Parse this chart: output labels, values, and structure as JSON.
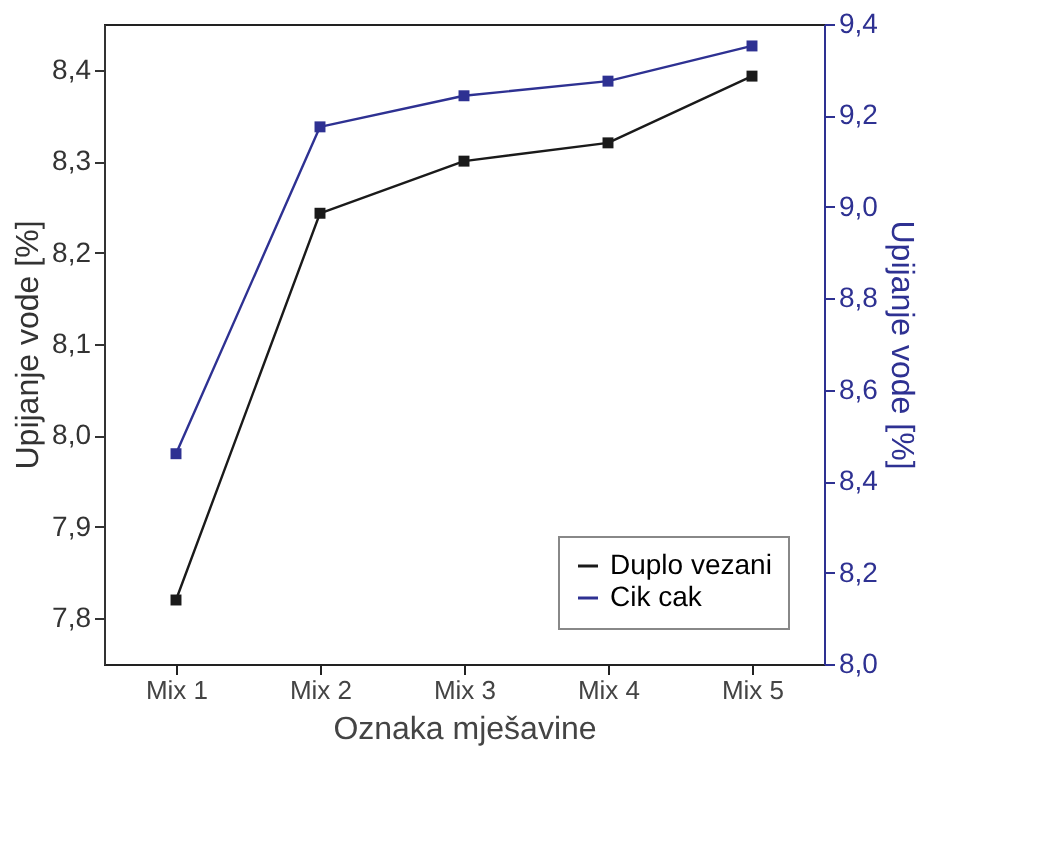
{
  "chart_data": {
    "type": "line",
    "xlabel": "Oznaka mješavine",
    "ylabel": "Upijanje vode [%]",
    "y2label": "Upijanje vode [%]",
    "categories": [
      "Mix 1",
      "Mix 2",
      "Mix 3",
      "Mix 4",
      "Mix 5"
    ],
    "series": [
      {
        "name": "Duplo vezani",
        "color": "#1a1a1a",
        "axis": "y",
        "values": [
          7.82,
          8.243,
          8.3,
          8.32,
          8.393
        ]
      },
      {
        "name": "Cik cak",
        "color": "#2e3192",
        "axis": "y2",
        "values": [
          8.46,
          9.175,
          9.243,
          9.275,
          9.352
        ]
      }
    ],
    "ylim": [
      7.75,
      8.45
    ],
    "yticks": [
      {
        "value": 7.8,
        "label": "7,8"
      },
      {
        "value": 7.9,
        "label": "7,9"
      },
      {
        "value": 8.0,
        "label": "8,0"
      },
      {
        "value": 8.1,
        "label": "8,1"
      },
      {
        "value": 8.2,
        "label": "8,2"
      },
      {
        "value": 8.3,
        "label": "8,3"
      },
      {
        "value": 8.4,
        "label": "8,4"
      }
    ],
    "y2lim": [
      8.0,
      9.4
    ],
    "y2ticks": [
      {
        "value": 8.0,
        "label": "8,0"
      },
      {
        "value": 8.2,
        "label": "8,2"
      },
      {
        "value": 8.4,
        "label": "8,4"
      },
      {
        "value": 8.6,
        "label": "8,6"
      },
      {
        "value": 8.8,
        "label": "8,8"
      },
      {
        "value": 9.0,
        "label": "9,0"
      },
      {
        "value": 9.2,
        "label": "9,2"
      },
      {
        "value": 9.4,
        "label": "9,4"
      }
    ],
    "marker": "square",
    "line_style": "solid",
    "grid": false,
    "legend": "bottom right"
  }
}
